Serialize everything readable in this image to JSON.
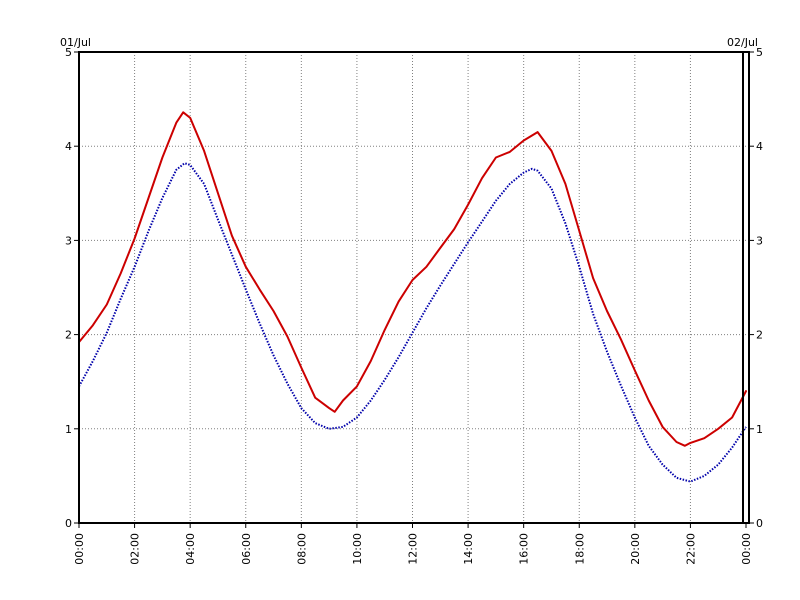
{
  "chart_data": {
    "type": "line",
    "title": "",
    "xlabel": "",
    "ylabel": "",
    "date_start_label": "01/Jul",
    "date_end_label": "02/Jul",
    "x_ticks": [
      "00:00",
      "02:00",
      "04:00",
      "06:00",
      "08:00",
      "10:00",
      "12:00",
      "14:00",
      "16:00",
      "18:00",
      "20:00",
      "22:00",
      "00:00"
    ],
    "x_range_hours": [
      0,
      24
    ],
    "ylim": [
      0,
      5
    ],
    "y_ticks": [
      "0",
      "1",
      "2",
      "3",
      "4",
      "5"
    ],
    "grid": true,
    "legend": "none",
    "series": [
      {
        "color": "#cc0000",
        "style": "solid",
        "points": [
          [
            0.0,
            1.92
          ],
          [
            0.5,
            2.1
          ],
          [
            1.0,
            2.32
          ],
          [
            1.5,
            2.65
          ],
          [
            2.0,
            3.02
          ],
          [
            2.5,
            3.45
          ],
          [
            3.0,
            3.88
          ],
          [
            3.5,
            4.25
          ],
          [
            3.75,
            4.36
          ],
          [
            4.0,
            4.3
          ],
          [
            4.5,
            3.95
          ],
          [
            5.0,
            3.5
          ],
          [
            5.5,
            3.05
          ],
          [
            6.0,
            2.72
          ],
          [
            6.5,
            2.48
          ],
          [
            7.0,
            2.25
          ],
          [
            7.5,
            1.98
          ],
          [
            8.0,
            1.65
          ],
          [
            8.5,
            1.33
          ],
          [
            9.0,
            1.22
          ],
          [
            9.2,
            1.18
          ],
          [
            9.5,
            1.3
          ],
          [
            10.0,
            1.45
          ],
          [
            10.5,
            1.72
          ],
          [
            11.0,
            2.05
          ],
          [
            11.5,
            2.35
          ],
          [
            12.0,
            2.58
          ],
          [
            12.5,
            2.72
          ],
          [
            13.0,
            2.92
          ],
          [
            13.5,
            3.12
          ],
          [
            14.0,
            3.38
          ],
          [
            14.5,
            3.66
          ],
          [
            15.0,
            3.88
          ],
          [
            15.5,
            3.94
          ],
          [
            16.0,
            4.06
          ],
          [
            16.5,
            4.15
          ],
          [
            17.0,
            3.95
          ],
          [
            17.5,
            3.6
          ],
          [
            18.0,
            3.1
          ],
          [
            18.5,
            2.6
          ],
          [
            19.0,
            2.25
          ],
          [
            19.5,
            1.95
          ],
          [
            20.0,
            1.62
          ],
          [
            20.5,
            1.3
          ],
          [
            21.0,
            1.02
          ],
          [
            21.5,
            0.86
          ],
          [
            21.8,
            0.82
          ],
          [
            22.0,
            0.85
          ],
          [
            22.5,
            0.9
          ],
          [
            23.0,
            1.0
          ],
          [
            23.5,
            1.12
          ],
          [
            24.0,
            1.4
          ]
        ]
      },
      {
        "color": "#0000aa",
        "style": "dotted",
        "points": [
          [
            0.0,
            1.45
          ],
          [
            0.5,
            1.72
          ],
          [
            1.0,
            2.02
          ],
          [
            1.5,
            2.38
          ],
          [
            2.0,
            2.72
          ],
          [
            2.5,
            3.1
          ],
          [
            3.0,
            3.45
          ],
          [
            3.5,
            3.75
          ],
          [
            3.8,
            3.82
          ],
          [
            4.0,
            3.8
          ],
          [
            4.5,
            3.6
          ],
          [
            5.0,
            3.22
          ],
          [
            5.5,
            2.85
          ],
          [
            6.0,
            2.48
          ],
          [
            6.5,
            2.12
          ],
          [
            7.0,
            1.78
          ],
          [
            7.5,
            1.48
          ],
          [
            8.0,
            1.22
          ],
          [
            8.5,
            1.06
          ],
          [
            9.0,
            1.0
          ],
          [
            9.5,
            1.02
          ],
          [
            10.0,
            1.12
          ],
          [
            10.5,
            1.3
          ],
          [
            11.0,
            1.52
          ],
          [
            11.5,
            1.76
          ],
          [
            12.0,
            2.02
          ],
          [
            12.5,
            2.28
          ],
          [
            13.0,
            2.52
          ],
          [
            13.5,
            2.75
          ],
          [
            14.0,
            2.98
          ],
          [
            14.5,
            3.2
          ],
          [
            15.0,
            3.42
          ],
          [
            15.5,
            3.6
          ],
          [
            16.0,
            3.72
          ],
          [
            16.3,
            3.76
          ],
          [
            16.5,
            3.74
          ],
          [
            17.0,
            3.55
          ],
          [
            17.5,
            3.18
          ],
          [
            18.0,
            2.72
          ],
          [
            18.5,
            2.22
          ],
          [
            19.0,
            1.82
          ],
          [
            19.5,
            1.46
          ],
          [
            20.0,
            1.12
          ],
          [
            20.5,
            0.82
          ],
          [
            21.0,
            0.62
          ],
          [
            21.5,
            0.48
          ],
          [
            22.0,
            0.44
          ],
          [
            22.5,
            0.5
          ],
          [
            23.0,
            0.62
          ],
          [
            23.5,
            0.8
          ],
          [
            24.0,
            1.02
          ]
        ]
      }
    ]
  }
}
